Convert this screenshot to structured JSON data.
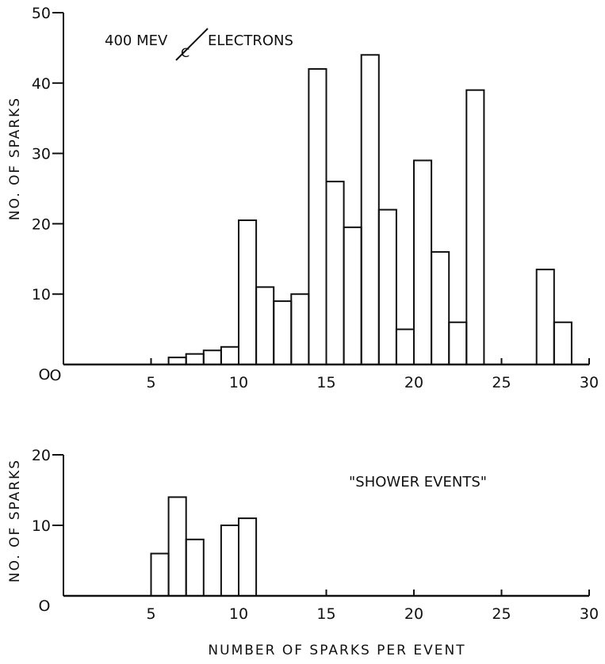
{
  "chart_data": [
    {
      "type": "bar",
      "title_parts": [
        "400 MEV",
        "C",
        "ELECTRONS"
      ],
      "xlabel": "",
      "ylabel": "NO. OF SPARKS",
      "xlim": [
        0,
        30
      ],
      "ylim": [
        0,
        50
      ],
      "xticks": [
        "5",
        "10",
        "15",
        "20",
        "25",
        "30"
      ],
      "x0_label": "O",
      "yticks": [
        "10",
        "20",
        "30",
        "40",
        "50"
      ],
      "y0_label": "O",
      "bins": [
        {
          "x": 6,
          "v": 1
        },
        {
          "x": 7,
          "v": 1.5
        },
        {
          "x": 8,
          "v": 2
        },
        {
          "x": 9,
          "v": 2.5
        },
        {
          "x": 10,
          "v": 20.5
        },
        {
          "x": 11,
          "v": 11
        },
        {
          "x": 12,
          "v": 9
        },
        {
          "x": 13,
          "v": 10
        },
        {
          "x": 14,
          "v": 42
        },
        {
          "x": 15,
          "v": 26
        },
        {
          "x": 16,
          "v": 19.5
        },
        {
          "x": 17,
          "v": 44
        },
        {
          "x": 18,
          "v": 22
        },
        {
          "x": 19,
          "v": 5
        },
        {
          "x": 20,
          "v": 29
        },
        {
          "x": 21,
          "v": 16
        },
        {
          "x": 22,
          "v": 6
        },
        {
          "x": 23,
          "v": 39
        },
        {
          "x": 27,
          "v": 13.5
        },
        {
          "x": 28,
          "v": 6
        }
      ]
    },
    {
      "type": "bar",
      "title": "\"SHOWER EVENTS\"",
      "xlabel": "NUMBER OF SPARKS PER EVENT",
      "ylabel": "NO. OF SPARKS",
      "xlim": [
        0,
        30
      ],
      "ylim": [
        0,
        20
      ],
      "xticks": [
        "5",
        "10",
        "15",
        "20",
        "25",
        "30"
      ],
      "yticks": [
        "10",
        "20"
      ],
      "y0_label": "O",
      "bins": [
        {
          "x": 5,
          "v": 6
        },
        {
          "x": 6,
          "v": 14
        },
        {
          "x": 7,
          "v": 8
        },
        {
          "x": 9,
          "v": 10
        },
        {
          "x": 10,
          "v": 11
        }
      ]
    }
  ]
}
